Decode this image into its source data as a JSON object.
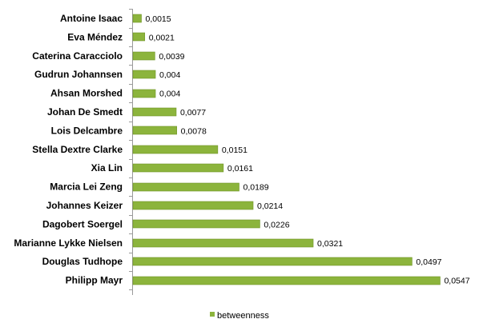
{
  "chart_data": {
    "type": "bar",
    "orientation": "horizontal",
    "categories": [
      "Antoine Isaac",
      "Eva Méndez",
      "Caterina Caracciolo",
      "Gudrun Johannsen",
      "Ahsan Morshed",
      "Johan De Smedt",
      "Lois Delcambre",
      "Stella Dextre Clarke",
      "Xia Lin",
      "Marcia Lei Zeng",
      "Johannes Keizer",
      "Dagobert Soergel",
      "Marianne Lykke Nielsen",
      "Douglas Tudhope",
      "Philipp Mayr"
    ],
    "series": [
      {
        "name": "betweenness",
        "values": [
          0.0015,
          0.0021,
          0.0039,
          0.004,
          0.004,
          0.0077,
          0.0078,
          0.0151,
          0.0161,
          0.0189,
          0.0214,
          0.0226,
          0.0321,
          0.0497,
          0.0547
        ]
      }
    ],
    "value_labels": [
      "0,0015",
      "0,0021",
      "0,0039",
      "0,004",
      "0,004",
      "0,0077",
      "0,0078",
      "0,0151",
      "0,0161",
      "0,0189",
      "0,0214",
      "0,0226",
      "0,0321",
      "0,0497",
      "0,0547"
    ],
    "xlim": [
      0,
      0.06
    ],
    "grid": false,
    "legend_position": "bottom",
    "colors": {
      "bar_fill": "#8cb43c",
      "bar_stroke": "#6f9426",
      "axis": "#9a9a9a"
    }
  }
}
